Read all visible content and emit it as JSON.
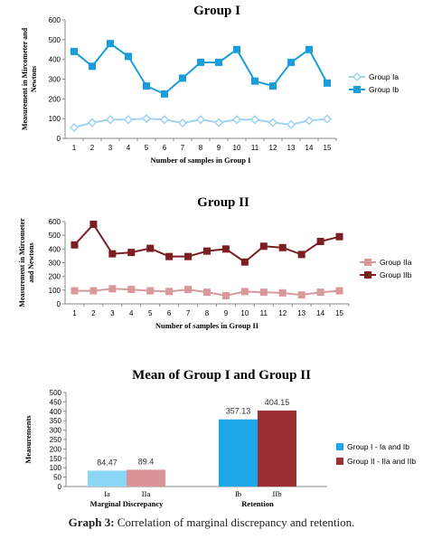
{
  "caption": {
    "label": "Graph 3:",
    "text": "Correlation of marginal discrepancy and retention."
  },
  "chart_data": [
    {
      "type": "line",
      "title": "Group I",
      "xlabel": "Number of samples in Group I",
      "ylabel": "Measurement in Mircometer and Newtons",
      "ylim": [
        0,
        600
      ],
      "yticks": [
        0,
        100,
        200,
        300,
        400,
        500,
        600
      ],
      "x": [
        1,
        2,
        3,
        4,
        5,
        6,
        7,
        8,
        9,
        10,
        11,
        12,
        13,
        14,
        15
      ],
      "legend_position": "right",
      "grid": false,
      "series": [
        {
          "name": "Group Ia",
          "color": "#9FD3F0",
          "marker": "diamond",
          "values": [
            55,
            80,
            95,
            95,
            100,
            95,
            78,
            95,
            80,
            95,
            95,
            80,
            70,
            90,
            98
          ]
        },
        {
          "name": "Group Ib",
          "color": "#1B9DD9",
          "marker": "square",
          "values": [
            440,
            365,
            480,
            415,
            265,
            225,
            305,
            385,
            385,
            450,
            290,
            265,
            385,
            450,
            280
          ]
        }
      ]
    },
    {
      "type": "line",
      "title": "Group II",
      "xlabel": "Number of samples in Group II",
      "ylabel": "Measurement in Mircometer and Newtons",
      "ylim": [
        0,
        600
      ],
      "yticks": [
        0,
        100,
        200,
        300,
        400,
        500,
        600
      ],
      "x": [
        1,
        2,
        3,
        4,
        5,
        6,
        7,
        8,
        9,
        10,
        11,
        12,
        13,
        14,
        15
      ],
      "legend_position": "right",
      "grid": false,
      "series": [
        {
          "name": "Group IIa",
          "color": "#D9999B",
          "marker": "square",
          "values": [
            95,
            95,
            110,
            105,
            95,
            90,
            105,
            85,
            60,
            90,
            85,
            80,
            65,
            85,
            95
          ]
        },
        {
          "name": "Group IIb",
          "color": "#7B1F23",
          "marker": "square",
          "values": [
            430,
            580,
            365,
            375,
            405,
            345,
            345,
            385,
            400,
            305,
            420,
            410,
            360,
            455,
            490
          ]
        }
      ]
    },
    {
      "type": "bar",
      "title": "Mean of Group I and Group II",
      "ylabel": "Measurements",
      "ylim": [
        0,
        500
      ],
      "yticks": [
        0,
        50,
        100,
        150,
        200,
        250,
        300,
        350,
        400,
        450,
        500
      ],
      "groups": [
        {
          "label": "Marginal Discrepancy",
          "sublabels": [
            "Ia",
            "IIa"
          ],
          "values": [
            84.47,
            89.4
          ],
          "value_labels": [
            "84.47",
            "89.4"
          ]
        },
        {
          "label": "Retention",
          "sublabels": [
            "Ib",
            "IIb"
          ],
          "values": [
            357.13,
            404.15
          ],
          "value_labels": [
            "357.13",
            "404.15"
          ]
        }
      ],
      "series": [
        {
          "name": "Group I - Ia and Ib",
          "colors": [
            "#8AD6F7",
            "#1EA8E8"
          ],
          "legend_color": "#1EA8E8"
        },
        {
          "name": "Group II - IIa and IIb",
          "colors": [
            "#D99497",
            "#9B2F32"
          ],
          "legend_color": "#9B2F32"
        }
      ],
      "legend_position": "right",
      "grid": false
    }
  ]
}
